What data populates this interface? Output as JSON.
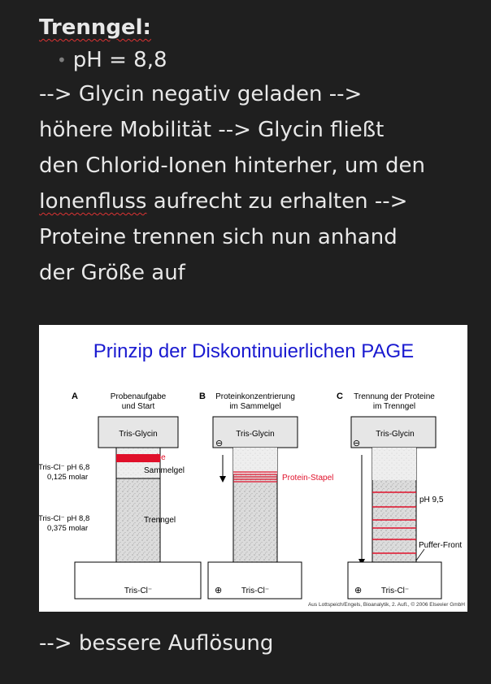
{
  "note": {
    "heading": "Trenngel:",
    "bullet": "pH = 8,8",
    "lines": [
      "--> Glycin negativ geladen -->",
      "höhere Mobilität --> Glycin fließt",
      "den Chlorid-Ionen hinterher, um den"
    ],
    "line4_spell": "Ionenfluss",
    "line4_rest": " aufrecht zu erhalten -->",
    "lines_after": [
      "Proteine trennen sich nun anhand",
      "der Größe auf"
    ],
    "footer": "--> bessere Auflösung"
  },
  "figure": {
    "title": "Prinzip der Diskontinuierlichen PAGE",
    "panel_a": {
      "letter": "A",
      "caption1": "Probenaufgabe",
      "caption2": "und Start",
      "top_label": "Tris-Glycin",
      "bottom_label": "Tris-Cl⁻",
      "probe": "Probe",
      "sammelgel": "Sammelgel",
      "trenngel": "Trenngel",
      "left1a": "Tris-Cl⁻ pH 6,8",
      "left1b": "0,125 molar",
      "left2a": "Tris-Cl⁻ pH 8,8",
      "left2b": "0,375 molar"
    },
    "panel_b": {
      "letter": "B",
      "caption1": "Proteinkonzentrierung",
      "caption2": "im Sammelgel",
      "top_label": "Tris-Glycin",
      "bottom_label": "Tris-Cl⁻",
      "stack_label": "Protein-Stapel",
      "minus": "⊖",
      "plus": "⊕"
    },
    "panel_c": {
      "letter": "C",
      "caption1": "Trennung der Proteine",
      "caption2": "im Trenngel",
      "top_label": "Tris-Glycin",
      "bottom_label": "Tris-Cl⁻",
      "ph_label": "pH 9,5",
      "front_label": "Puffer-Front",
      "minus": "⊖",
      "plus": "⊕"
    },
    "credit": "Aus Lottspeich/Engels, Bioanalytik, 2. Aufl., © 2006 Elsevier GmbH",
    "colors": {
      "title": "#1a1ad0",
      "red": "#e0102a",
      "gel": "#d6d6d6",
      "buffer": "#e3e3e3"
    }
  }
}
